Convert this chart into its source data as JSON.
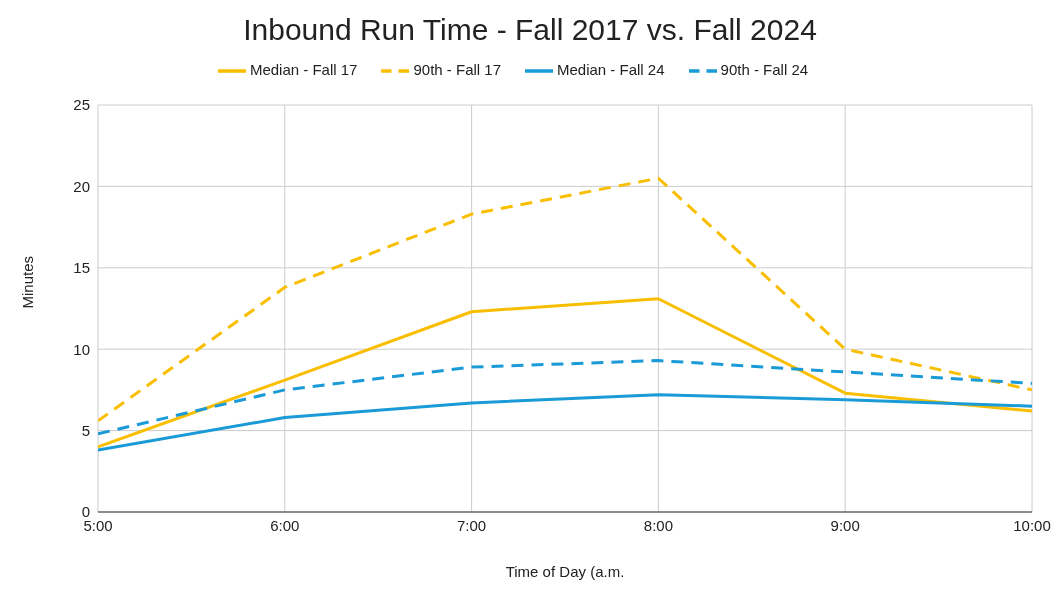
{
  "chart_data": {
    "type": "line",
    "title": "Inbound Run Time - Fall 2017 vs. Fall 2024",
    "xlabel": "Time of Day (a.m.",
    "ylabel": "Minutes",
    "x": [
      5,
      6,
      7,
      8,
      9,
      10
    ],
    "xlim": [
      5,
      10
    ],
    "xticks": [
      {
        "value": 5,
        "label": "5:00"
      },
      {
        "value": 6,
        "label": "6:00"
      },
      {
        "value": 7,
        "label": "7:00"
      },
      {
        "value": 8,
        "label": "8:00"
      },
      {
        "value": 9,
        "label": "9:00"
      },
      {
        "value": 10,
        "label": "10:00"
      }
    ],
    "ylim": [
      0,
      25
    ],
    "yticks": [
      0,
      5,
      10,
      15,
      20,
      25
    ],
    "grid": true,
    "legend": "top",
    "marker": "none",
    "series": [
      {
        "name": "Median - Fall 17",
        "color": "#f9be00",
        "line_style": "solid",
        "values": [
          4.0,
          8.1,
          12.3,
          13.1,
          7.3,
          6.2
        ]
      },
      {
        "name": "90th - Fall 17",
        "color": "#f9be00",
        "line_style": "dashed",
        "values": [
          5.6,
          13.8,
          18.3,
          20.5,
          10.0,
          7.5
        ]
      },
      {
        "name": "Median - Fall 24",
        "color": "#1a9bd7",
        "line_style": "solid",
        "values": [
          3.8,
          5.8,
          6.7,
          7.2,
          6.9,
          6.5
        ]
      },
      {
        "name": "90th - Fall 24",
        "color": "#1a9bd7",
        "line_style": "dashed",
        "values": [
          4.8,
          7.5,
          8.9,
          9.3,
          8.6,
          7.9
        ]
      }
    ]
  }
}
